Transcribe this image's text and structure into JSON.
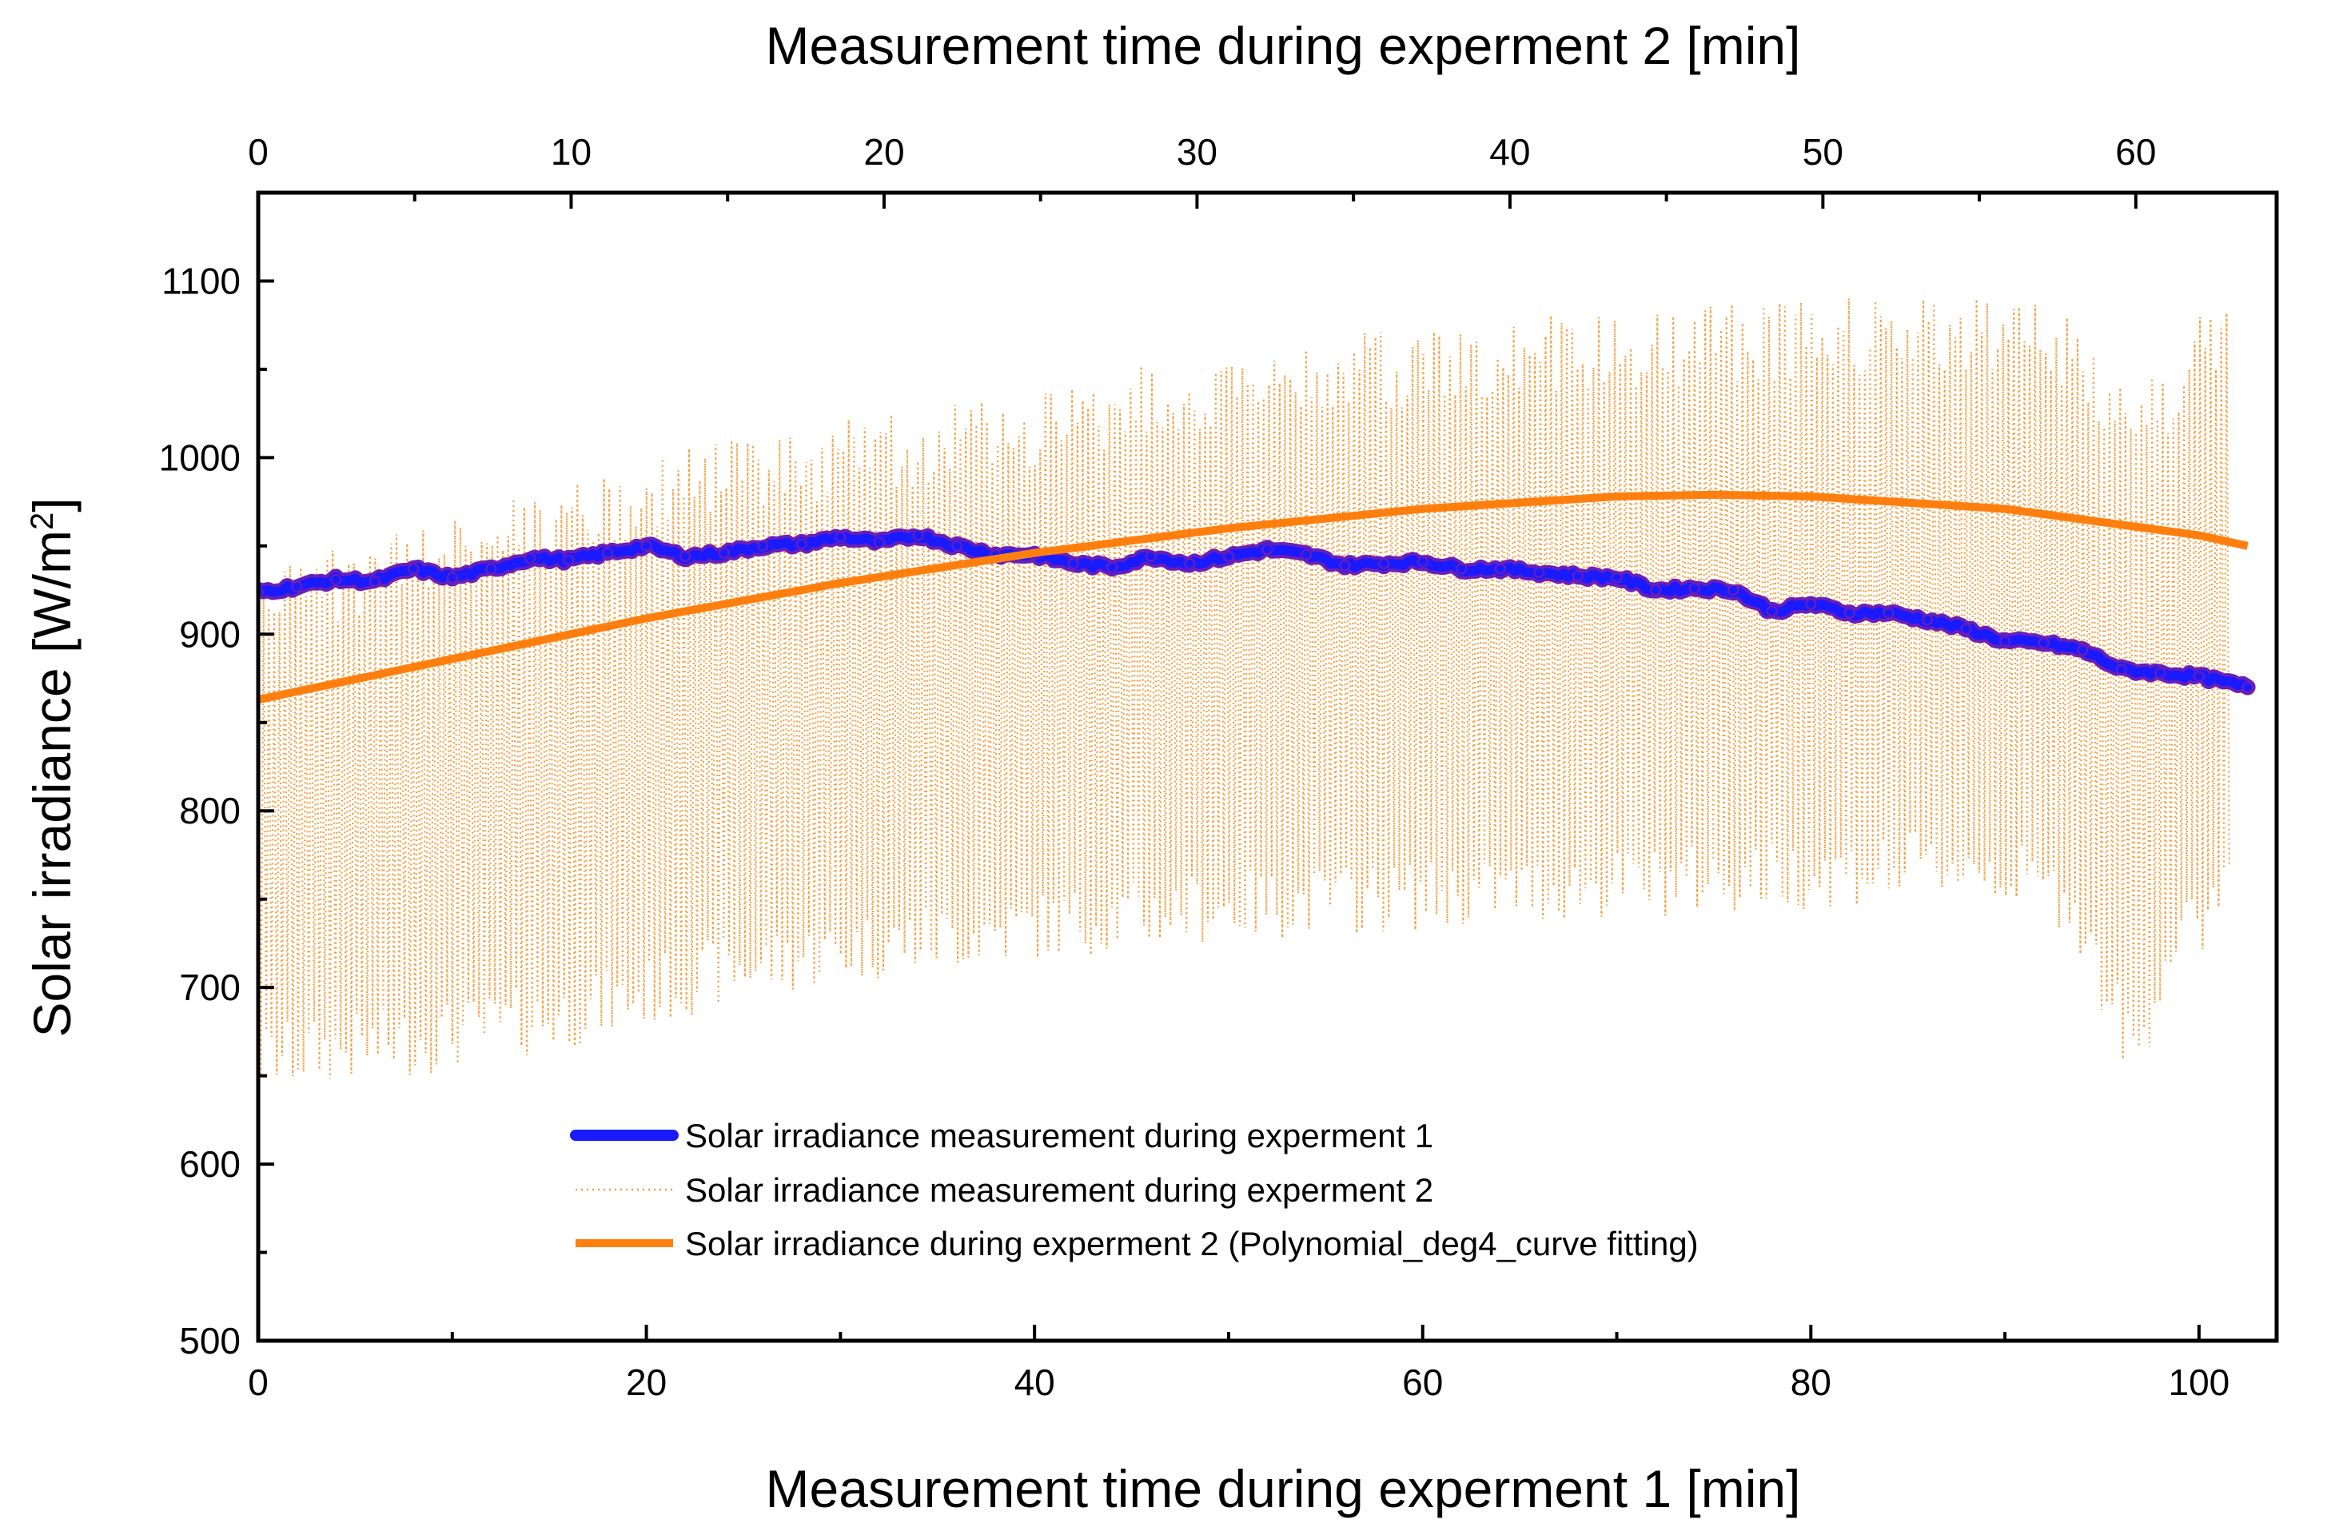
{
  "chart_data": {
    "type": "line",
    "title": "",
    "xlabel": "Measurement time during experment 1 [min]",
    "x2label": "Measurement time during experment 2 [min]",
    "ylabel": "Solar irradiance [W/m",
    "ylabel_sup": "2",
    "ylabel_close": "]",
    "xlim": [
      0,
      104
    ],
    "x2lim": [
      0,
      64.5
    ],
    "ylim": [
      500,
      1150
    ],
    "xticks": [
      "0",
      "20",
      "40",
      "60",
      "80",
      "100"
    ],
    "x2ticks": [
      "0",
      "10",
      "20",
      "30",
      "40",
      "50",
      "60"
    ],
    "yticks": [
      "500",
      "600",
      "700",
      "800",
      "900",
      "1000",
      "1100"
    ],
    "legend_position": "lower-center",
    "colors": {
      "exp1": "#1a1aff",
      "exp1_edge": "#6b1fb5",
      "exp2": "#f29b38",
      "fit": "#ff7f0e"
    },
    "series": [
      {
        "name": "Solar irradiance measurement during experment 1",
        "style": "thick-markers",
        "x": [
          0,
          2,
          4,
          6,
          8,
          10,
          12,
          14,
          16,
          18,
          20,
          22,
          24,
          26,
          28,
          30,
          32,
          34,
          36,
          38,
          40,
          42,
          44,
          46,
          48,
          50,
          52,
          54,
          56,
          58,
          60,
          62,
          64,
          66,
          68,
          70,
          72,
          74,
          76,
          78,
          80,
          82,
          84,
          86,
          88,
          90,
          92,
          94,
          96,
          98,
          100,
          102.5
        ],
        "values": [
          924,
          927,
          931,
          930,
          937,
          932,
          937,
          943,
          942,
          946,
          950,
          944,
          946,
          950,
          951,
          955,
          952,
          956,
          950,
          945,
          945,
          940,
          938,
          944,
          940,
          944,
          948,
          945,
          939,
          940,
          941,
          937,
          937,
          935,
          933,
          932,
          925,
          926,
          925,
          913,
          917,
          912,
          912,
          908,
          903,
          896,
          895,
          891,
          880,
          878,
          876,
          870
        ]
      },
      {
        "name": "Solar irradiance measurement during experment 2",
        "style": "dotted-oscillating",
        "x_axis": "top",
        "x2": [
          0,
          5,
          10,
          15,
          20,
          25,
          30,
          35,
          40,
          45,
          50,
          55,
          58,
          59,
          60,
          61,
          62,
          63
        ],
        "upper": [
          940,
          960,
          990,
          1010,
          1025,
          1040,
          1060,
          1070,
          1080,
          1085,
          1090,
          1095,
          1085,
          1060,
          1055,
          1050,
          1080,
          1100
        ],
        "lower": [
          640,
          650,
          665,
          690,
          705,
          715,
          725,
          730,
          735,
          740,
          745,
          750,
          730,
          680,
          640,
          700,
          715,
          750
        ]
      },
      {
        "name": "Solar irradiance during experment 2 (Polynomial_deg4_curve fitting)",
        "style": "solid-thick",
        "x": [
          0,
          10,
          20,
          30,
          40,
          50,
          60,
          70,
          75,
          80,
          90,
          100,
          102.5
        ],
        "values": [
          863,
          886,
          909,
          929,
          946,
          960,
          971,
          978,
          979,
          978,
          971,
          956,
          950
        ]
      }
    ]
  }
}
